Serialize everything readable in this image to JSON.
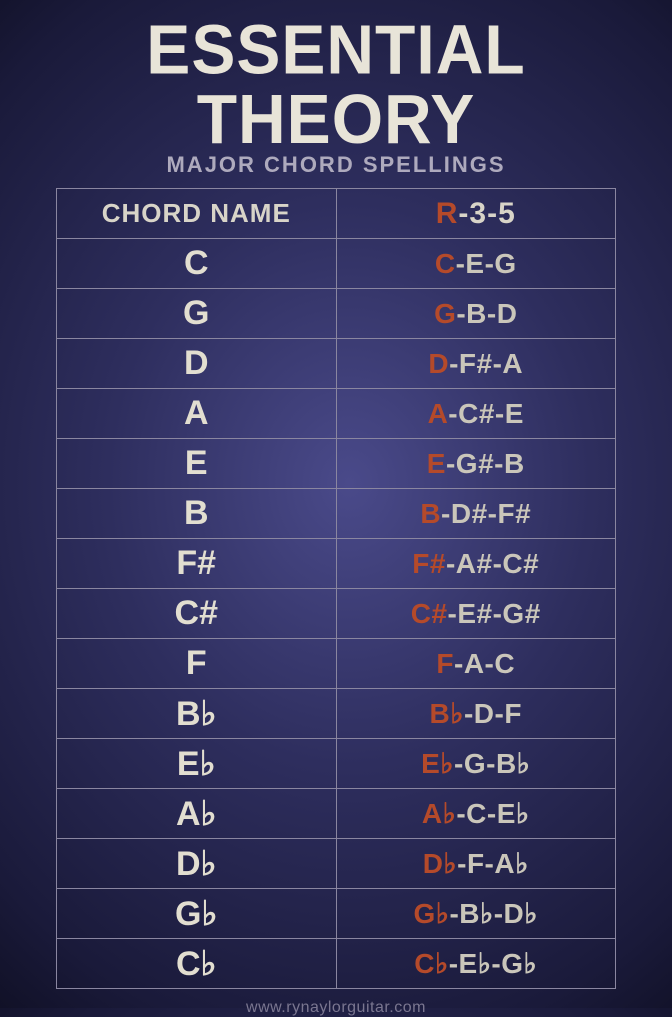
{
  "title": "ESSENTIAL THEORY",
  "subtitle": "MAJOR CHORD SPELLINGS",
  "header": {
    "left": "CHORD NAME",
    "formula_root": "R",
    "formula_rest": "-3-5"
  },
  "rows": [
    {
      "name": "C",
      "root": "C",
      "rest": "-E-G"
    },
    {
      "name": "G",
      "root": "G",
      "rest": "-B-D"
    },
    {
      "name": "D",
      "root": "D",
      "rest": "-F#-A"
    },
    {
      "name": "A",
      "root": "A",
      "rest": "-C#-E"
    },
    {
      "name": "E",
      "root": "E",
      "rest": "-G#-B"
    },
    {
      "name": "B",
      "root": "B",
      "rest": "-D#-F#"
    },
    {
      "name": "F#",
      "root": "F#",
      "rest": "-A#-C#"
    },
    {
      "name": "C#",
      "root": "C#",
      "rest": "-E#-G#"
    },
    {
      "name": "F",
      "root": "F",
      "rest": "-A-C"
    },
    {
      "name": "B♭",
      "root": "B♭",
      "rest": "-D-F"
    },
    {
      "name": "E♭",
      "root": "E♭",
      "rest": "-G-B♭"
    },
    {
      "name": "A♭",
      "root": "A♭",
      "rest": "-C-E♭"
    },
    {
      "name": "D♭",
      "root": "D♭",
      "rest": "-F-A♭"
    },
    {
      "name": "G♭",
      "root": "G♭",
      "rest": "-B♭-D♭"
    },
    {
      "name": "C♭",
      "root": "C♭",
      "rest": "-E♭-G♭"
    }
  ],
  "footer": "www.rynaylorguitar.com",
  "colors": {
    "root": "#b54a2a",
    "text": "#d8d4c8",
    "border": "#8a86a0",
    "bg_center": "#4a4a8a",
    "bg_edge": "#0d0d1f"
  },
  "fontsize": {
    "title": 66,
    "subtitle": 22,
    "header": 26,
    "chord_name": 34,
    "spelling": 28,
    "footer": 16
  }
}
